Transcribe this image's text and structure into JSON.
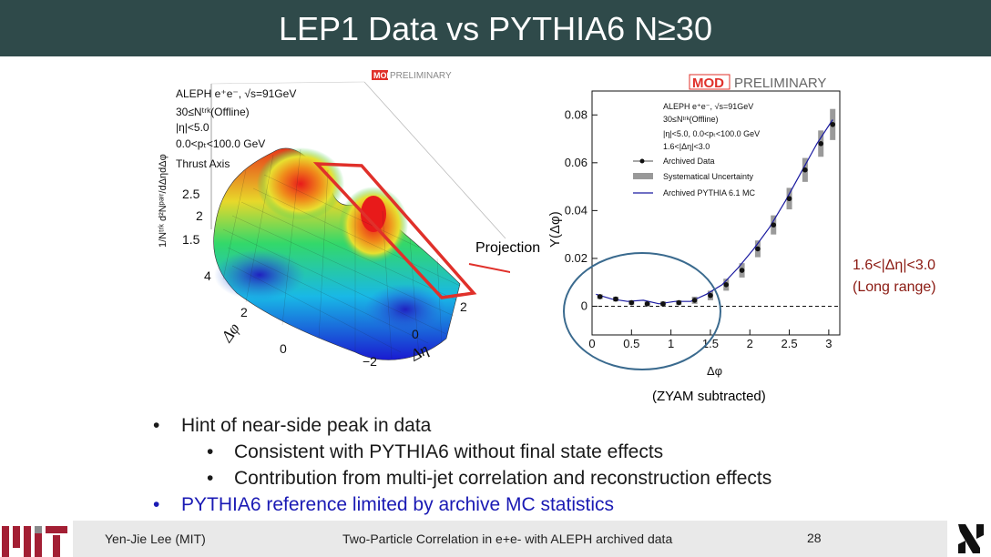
{
  "slide": {
    "title": "LEP1 Data vs PYTHIA6 N≥30",
    "annotations": {
      "projection": "Projection",
      "range_line1": "1.6<|Δη|<3.0",
      "range_line2": "(Long range)",
      "zyam": "(ZYAM subtracted)"
    },
    "bullets": [
      {
        "dot": "•",
        "text": "Hint of near-side peak in data"
      },
      {
        "dot": "•",
        "text": "Consistent with PYTHIA6 without final state effects"
      },
      {
        "dot": "•",
        "text": "Contribution from multi-jet correlation and reconstruction effects"
      },
      {
        "dot": "•",
        "text": "PYTHIA6 reference limited by archive MC statistics"
      }
    ],
    "footer": {
      "author": "Yen-Jie Lee (MIT)",
      "talk": "Two-Particle Correlation in e+e- with ALEPH archived data",
      "page": "28"
    },
    "colors": {
      "title_bg": "#2f4a4a",
      "accent_red": "#d03030",
      "blue_text": "#1a1ab4"
    }
  },
  "chart_data": [
    {
      "type": "surface",
      "watermark_mod": "MOD",
      "watermark_text": "PRELIMINARY",
      "info_lines": [
        "ALEPH e⁺e⁻, √s=91GeV",
        "30≤Nᵗʳᵏ(Offline)",
        "|η|<5.0",
        "0.0<pₜ<100.0 GeV",
        "Thrust Axis"
      ],
      "zlabel": "1/Nᵗʳᵏ d²Nᵖᵃⁱʳ/dΔηdΔφ",
      "xlabel": "Δη",
      "ylabel": "Δφ",
      "z_ticks": [
        "2.5",
        "2",
        "1.5"
      ],
      "phi_ticks": [
        "4",
        "2",
        "0"
      ],
      "eta_ticks": [
        "2",
        "0",
        "−2"
      ],
      "projection_window": "1.6<|Δη|<3.0"
    },
    {
      "type": "scatter",
      "watermark_mod": "MOD",
      "watermark_text": "PRELIMINARY",
      "xlabel": "Δφ",
      "ylabel": "Y(Δφ)",
      "xlim": [
        0,
        3.14
      ],
      "ylim": [
        -0.012,
        0.09
      ],
      "x_ticks": [
        0,
        0.5,
        1,
        1.5,
        2,
        2.5,
        3
      ],
      "x_tick_labels": [
        "0",
        "0.5",
        "1",
        "1.5",
        "2",
        "2.5",
        "3"
      ],
      "y_ticks": [
        0,
        0.02,
        0.04,
        0.06,
        0.08
      ],
      "y_tick_labels": [
        "0",
        "0.02",
        "0.04",
        "0.06",
        "0.08"
      ],
      "info_lines": [
        "ALEPH e⁺e⁻, √s=91GeV",
        "30≤Nᵗʳᵏ(Offline)",
        "|η|<5.0, 0.0<pₜ<100.0 GeV",
        "1.6<|Δη|<3.0"
      ],
      "legend": [
        "Archived Data",
        "Systematical Uncertainty",
        "Archived PYTHIA 6.1 MC"
      ],
      "legend_placement": "top-left",
      "series": [
        {
          "name": "Archived Data",
          "x": [
            0.1,
            0.3,
            0.5,
            0.7,
            0.9,
            1.1,
            1.3,
            1.5,
            1.7,
            1.9,
            2.1,
            2.3,
            2.5,
            2.7,
            2.9,
            3.05
          ],
          "y": [
            0.004,
            0.003,
            0.0015,
            0.001,
            0.001,
            0.0015,
            0.0025,
            0.0045,
            0.009,
            0.015,
            0.024,
            0.034,
            0.045,
            0.057,
            0.068,
            0.076
          ],
          "syst": [
            0.001,
            0.001,
            0.001,
            0.001,
            0.001,
            0.001,
            0.0015,
            0.002,
            0.0025,
            0.003,
            0.0035,
            0.004,
            0.0045,
            0.005,
            0.0055,
            0.0065
          ]
        },
        {
          "name": "Archived PYTHIA 6.1 MC",
          "x": [
            0.05,
            0.25,
            0.45,
            0.65,
            0.85,
            1.05,
            1.25,
            1.45,
            1.65,
            1.85,
            2.05,
            2.25,
            2.45,
            2.65,
            2.85,
            3.05
          ],
          "y": [
            0.005,
            0.003,
            0.002,
            0.0025,
            0.001,
            0.002,
            0.002,
            0.005,
            0.009,
            0.016,
            0.024,
            0.033,
            0.044,
            0.056,
            0.068,
            0.078
          ]
        }
      ]
    }
  ]
}
